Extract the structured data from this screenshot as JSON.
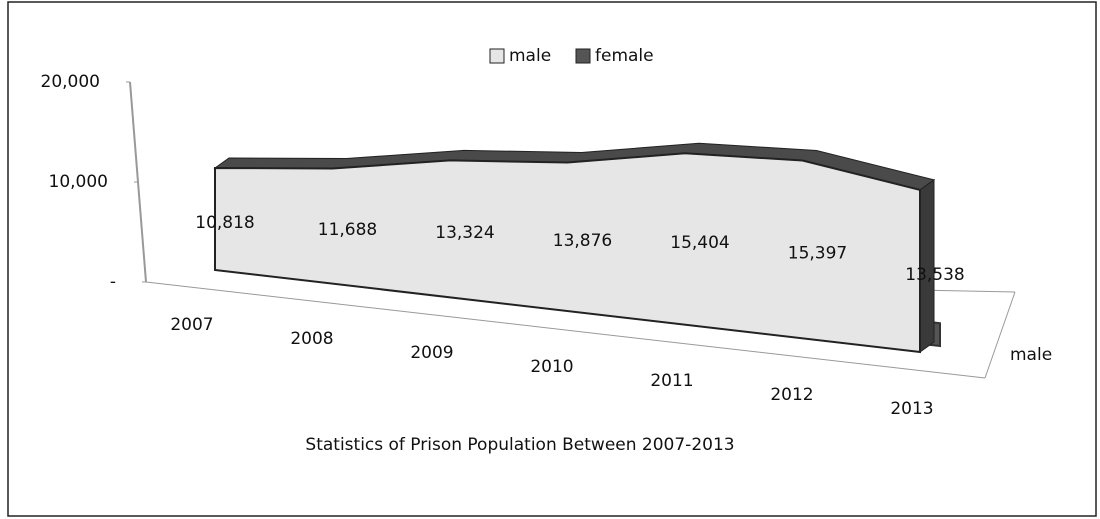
{
  "chart_data": {
    "type": "area3d",
    "title": "Statistics of Prison Population Between 2007-2013",
    "categories": [
      "2007",
      "2008",
      "2009",
      "2010",
      "2011",
      "2012",
      "2013"
    ],
    "series": [
      {
        "name": "male",
        "color": "#e6e6e6",
        "values": [
          10818,
          11688,
          13324,
          13876,
          15404,
          15397,
          13538
        ],
        "value_labels": [
          "10,818",
          "11,688",
          "13,324",
          "13,876",
          "15,404",
          "15,397",
          "13,538"
        ]
      },
      {
        "name": "female",
        "color": "#555555",
        "values": [
          1500,
          1600,
          1800,
          1900,
          2100,
          2100,
          1900
        ]
      }
    ],
    "ylim": [
      0,
      20000
    ],
    "yticks": [
      {
        "value": 0,
        "label": "-"
      },
      {
        "value": 10000,
        "label": "10,000"
      },
      {
        "value": 20000,
        "label": "20,000"
      }
    ],
    "legend": "top"
  }
}
